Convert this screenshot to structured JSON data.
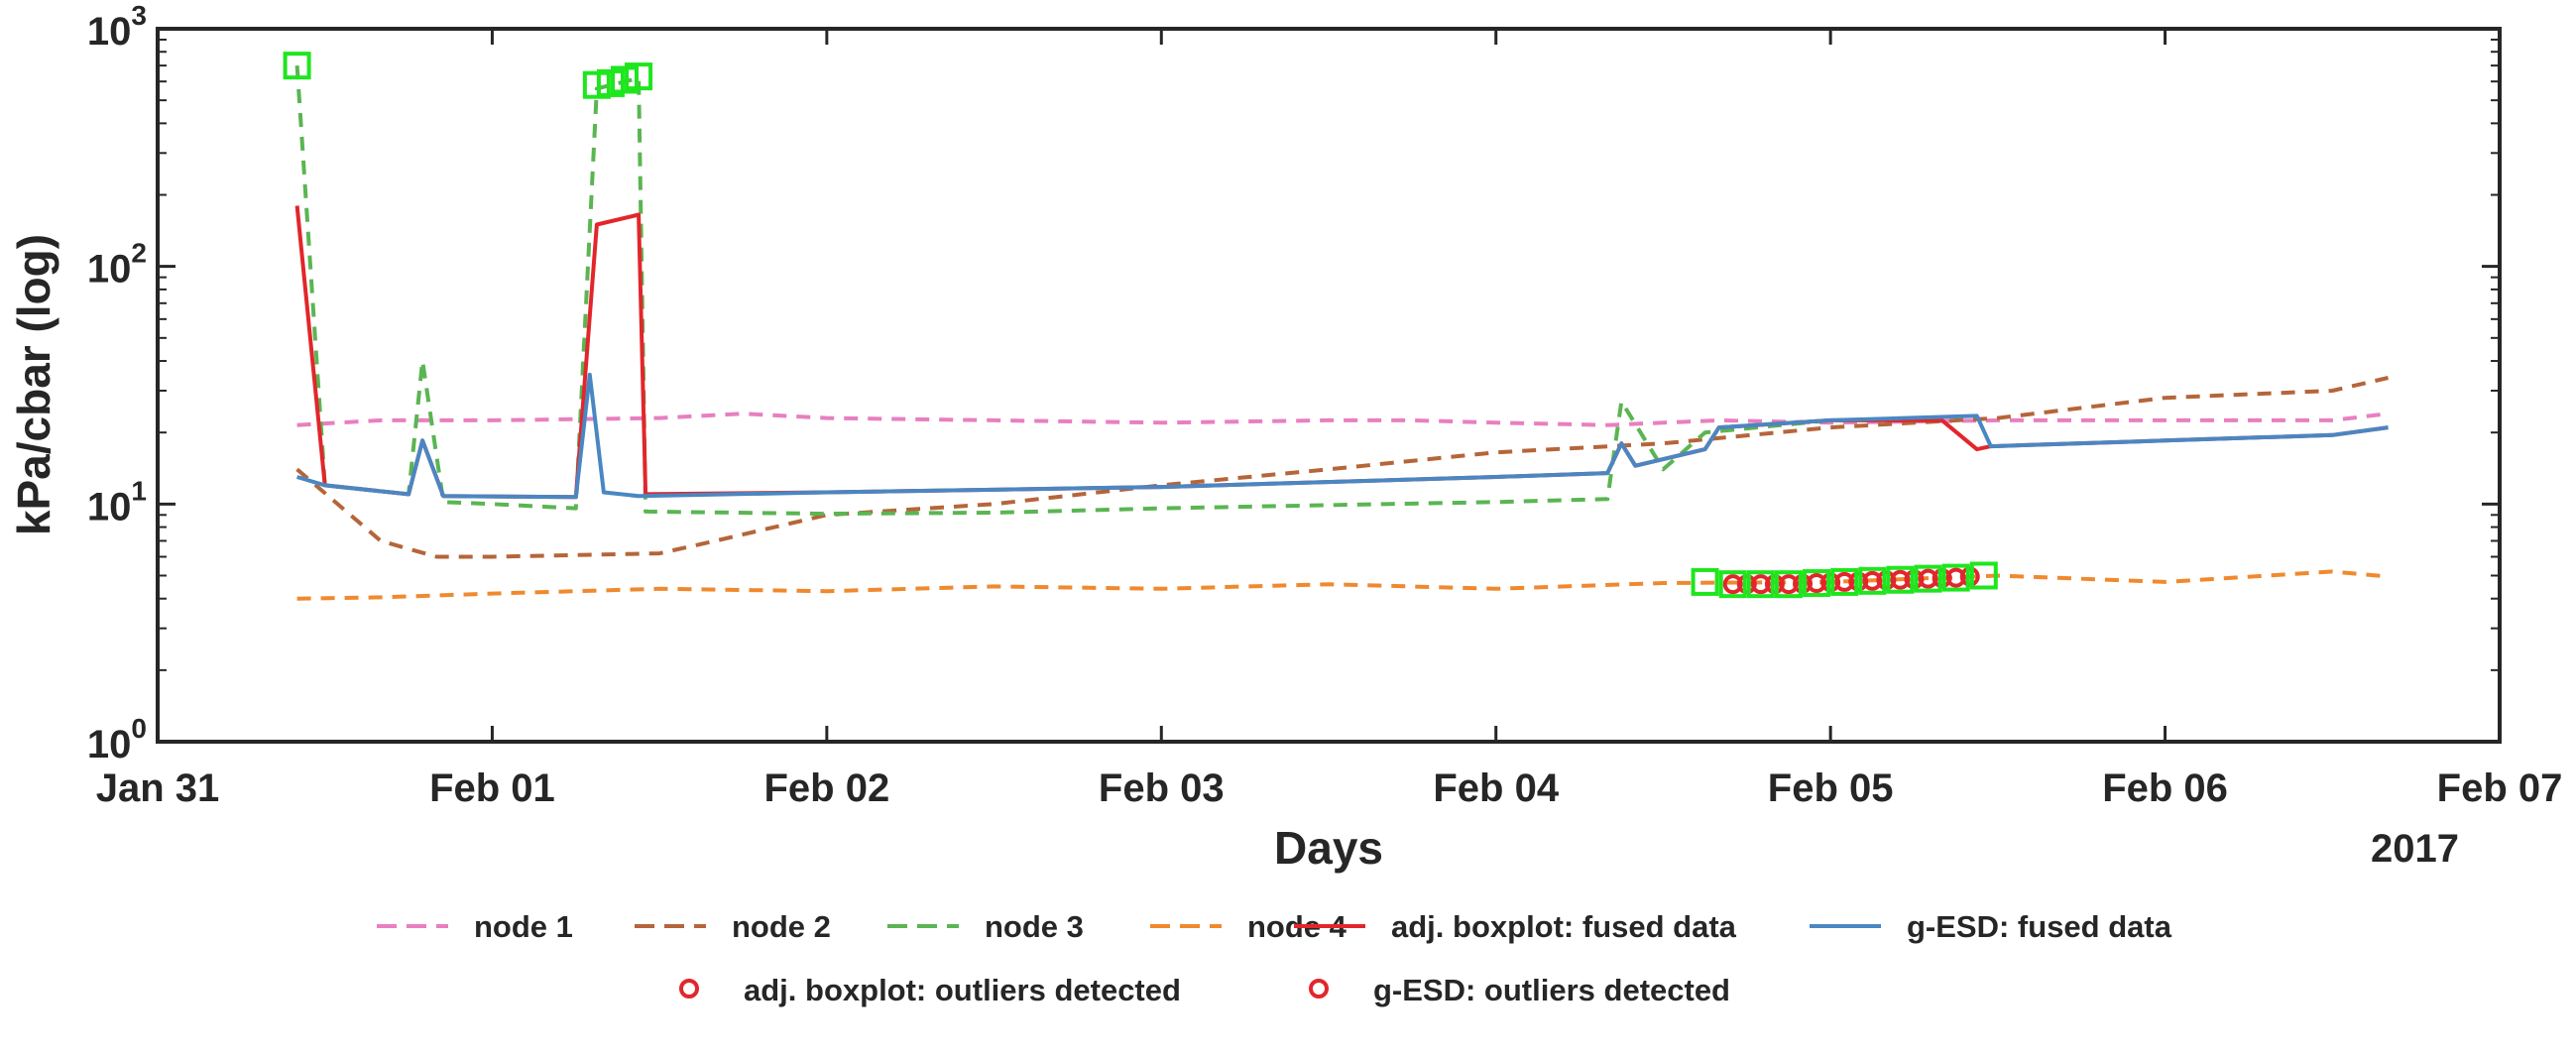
{
  "chart_data": {
    "type": "line",
    "xlabel": "Days",
    "ylabel": "kPa/cbar (log)",
    "year_label": "2017",
    "y_scale": "log",
    "ylim": [
      1,
      1000
    ],
    "xlim": [
      "2017-01-31",
      "2017-02-07"
    ],
    "grid": false,
    "legend_position": "bottom",
    "x_ticks": [
      {
        "date": "2017-01-31",
        "label": "Jan 31"
      },
      {
        "date": "2017-02-01",
        "label": "Feb 01"
      },
      {
        "date": "2017-02-02",
        "label": "Feb 02"
      },
      {
        "date": "2017-02-03",
        "label": "Feb 03"
      },
      {
        "date": "2017-02-04",
        "label": "Feb 04"
      },
      {
        "date": "2017-02-05",
        "label": "Feb 05"
      },
      {
        "date": "2017-02-06",
        "label": "Feb 06"
      },
      {
        "date": "2017-02-07",
        "label": "Feb 07"
      }
    ],
    "y_ticks": [
      {
        "value": 1,
        "base": "10",
        "exp": "0"
      },
      {
        "value": 10,
        "base": "10",
        "exp": "1"
      },
      {
        "value": 100,
        "base": "10",
        "exp": "2"
      },
      {
        "value": 1000,
        "base": "10",
        "exp": "3"
      }
    ],
    "series": [
      {
        "name": "node 1",
        "color": "#e87fc0",
        "style": "dashed",
        "points": [
          [
            "2017-01-31T10:00",
            21.5
          ],
          [
            "2017-01-31T16:00",
            22.5
          ],
          [
            "2017-02-01T00:00",
            22.5
          ],
          [
            "2017-02-01T12:00",
            23
          ],
          [
            "2017-02-01T18:00",
            24
          ],
          [
            "2017-02-02T00:00",
            23
          ],
          [
            "2017-02-02T12:00",
            22.5
          ],
          [
            "2017-02-03T00:00",
            22
          ],
          [
            "2017-02-03T12:00",
            22.5
          ],
          [
            "2017-02-03T18:00",
            22.5
          ],
          [
            "2017-02-04T00:00",
            22
          ],
          [
            "2017-02-04T08:00",
            21.5
          ],
          [
            "2017-02-04T16:00",
            22.5
          ],
          [
            "2017-02-05T00:00",
            22
          ],
          [
            "2017-02-05T12:00",
            22.5
          ],
          [
            "2017-02-06T00:00",
            22.5
          ],
          [
            "2017-02-06T12:00",
            22.5
          ],
          [
            "2017-02-06T16:00",
            24
          ]
        ]
      },
      {
        "name": "node 2",
        "color": "#b5653a",
        "style": "dashed",
        "points": [
          [
            "2017-01-31T10:00",
            14
          ],
          [
            "2017-01-31T16:00",
            7
          ],
          [
            "2017-01-31T20:00",
            6
          ],
          [
            "2017-02-01T00:00",
            6
          ],
          [
            "2017-02-01T12:00",
            6.2
          ],
          [
            "2017-02-01T16:00",
            7
          ],
          [
            "2017-02-02T00:00",
            9
          ],
          [
            "2017-02-02T12:00",
            10
          ],
          [
            "2017-02-03T00:00",
            12
          ],
          [
            "2017-02-03T12:00",
            14
          ],
          [
            "2017-02-04T00:00",
            16.5
          ],
          [
            "2017-02-04T12:00",
            18
          ],
          [
            "2017-02-05T00:00",
            21
          ],
          [
            "2017-02-05T12:00",
            23
          ],
          [
            "2017-02-06T00:00",
            28
          ],
          [
            "2017-02-06T12:00",
            30
          ],
          [
            "2017-02-06T16:00",
            34
          ]
        ]
      },
      {
        "name": "node 3",
        "color": "#5ab552",
        "style": "dashed",
        "points": [
          [
            "2017-01-31T10:00",
            700
          ],
          [
            "2017-01-31T12:00",
            12
          ],
          [
            "2017-01-31T18:00",
            11
          ],
          [
            "2017-01-31T19:00",
            40
          ],
          [
            "2017-01-31T20:30",
            10.2
          ],
          [
            "2017-02-01T00:00",
            10
          ],
          [
            "2017-02-01T06:00",
            9.6
          ],
          [
            "2017-02-01T07:30",
            560
          ],
          [
            "2017-02-01T10:30",
            620
          ],
          [
            "2017-02-01T11:00",
            9.3
          ],
          [
            "2017-02-02T00:00",
            9.1
          ],
          [
            "2017-02-02T12:00",
            9.2
          ],
          [
            "2017-02-03T00:00",
            9.6
          ],
          [
            "2017-02-03T12:00",
            9.9
          ],
          [
            "2017-02-04T00:00",
            10.2
          ],
          [
            "2017-02-04T08:00",
            10.5
          ],
          [
            "2017-02-04T09:00",
            27
          ],
          [
            "2017-02-04T12:00",
            14
          ],
          [
            "2017-02-04T15:00",
            20
          ],
          [
            "2017-02-05T00:00",
            22.5
          ],
          [
            "2017-02-05T08:00",
            22.5
          ]
        ]
      },
      {
        "name": "node 4",
        "color": "#f0892e",
        "style": "dashed",
        "points": [
          [
            "2017-01-31T10:00",
            4
          ],
          [
            "2017-01-31T16:00",
            4.05
          ],
          [
            "2017-02-01T00:00",
            4.2
          ],
          [
            "2017-02-01T12:00",
            4.4
          ],
          [
            "2017-02-02T00:00",
            4.3
          ],
          [
            "2017-02-02T12:00",
            4.5
          ],
          [
            "2017-02-03T00:00",
            4.4
          ],
          [
            "2017-02-03T12:00",
            4.6
          ],
          [
            "2017-02-04T00:00",
            4.4
          ],
          [
            "2017-02-04T12:00",
            4.65
          ],
          [
            "2017-02-05T00:00",
            4.7
          ],
          [
            "2017-02-05T12:00",
            5.0
          ],
          [
            "2017-02-06T00:00",
            4.7
          ],
          [
            "2017-02-06T12:00",
            5.2
          ],
          [
            "2017-02-06T16:00",
            4.95
          ]
        ]
      },
      {
        "name": "adj. boxplot: fused data",
        "color": "#e2262b",
        "style": "solid",
        "points": [
          [
            "2017-01-31T10:00",
            180
          ],
          [
            "2017-01-31T12:00",
            12
          ],
          [
            "2017-01-31T18:00",
            11
          ],
          [
            "2017-01-31T19:00",
            18.5
          ],
          [
            "2017-01-31T20:30",
            10.8
          ],
          [
            "2017-02-01T06:00",
            10.7
          ],
          [
            "2017-02-01T07:30",
            150
          ],
          [
            "2017-02-01T10:30",
            165
          ],
          [
            "2017-02-01T11:00",
            11
          ],
          [
            "2017-02-02T00:00",
            11.2
          ],
          [
            "2017-02-03T00:00",
            11.8
          ],
          [
            "2017-02-04T00:00",
            13
          ],
          [
            "2017-02-04T08:00",
            13.5
          ],
          [
            "2017-02-04T09:00",
            18
          ],
          [
            "2017-02-04T10:00",
            14.5
          ],
          [
            "2017-02-04T15:00",
            17
          ],
          [
            "2017-02-04T16:00",
            21
          ],
          [
            "2017-02-05T00:00",
            22.5
          ],
          [
            "2017-02-05T08:00",
            22.5
          ],
          [
            "2017-02-05T10:30",
            17
          ],
          [
            "2017-02-05T11:30",
            17.5
          ],
          [
            "2017-02-06T00:00",
            18.5
          ],
          [
            "2017-02-06T12:00",
            19.5
          ],
          [
            "2017-02-06T16:00",
            21
          ]
        ]
      },
      {
        "name": "g-ESD: fused data",
        "color": "#4a87c2",
        "style": "solid",
        "points": [
          [
            "2017-01-31T10:00",
            13
          ],
          [
            "2017-01-31T12:00",
            12
          ],
          [
            "2017-01-31T18:00",
            11
          ],
          [
            "2017-01-31T19:00",
            18.5
          ],
          [
            "2017-01-31T20:30",
            10.8
          ],
          [
            "2017-02-01T06:00",
            10.7
          ],
          [
            "2017-02-01T07:00",
            35
          ],
          [
            "2017-02-01T08:00",
            11.2
          ],
          [
            "2017-02-01T10:30",
            10.8
          ],
          [
            "2017-02-02T00:00",
            11.2
          ],
          [
            "2017-02-03T00:00",
            11.8
          ],
          [
            "2017-02-04T00:00",
            13
          ],
          [
            "2017-02-04T08:00",
            13.5
          ],
          [
            "2017-02-04T09:00",
            18
          ],
          [
            "2017-02-04T10:00",
            14.5
          ],
          [
            "2017-02-04T15:00",
            17
          ],
          [
            "2017-02-04T16:00",
            21
          ],
          [
            "2017-02-05T00:00",
            22.5
          ],
          [
            "2017-02-05T10:30",
            23.5
          ],
          [
            "2017-02-05T11:30",
            17.5
          ],
          [
            "2017-02-06T00:00",
            18.5
          ],
          [
            "2017-02-06T12:00",
            19.5
          ],
          [
            "2017-02-06T16:00",
            21
          ]
        ]
      }
    ],
    "outlier_markers": {
      "color": "#1ee61e",
      "points": [
        [
          "2017-01-31T10:00",
          700
        ],
        [
          "2017-02-01T07:30",
          580
        ],
        [
          "2017-02-01T08:30",
          590
        ],
        [
          "2017-02-01T09:30",
          610
        ],
        [
          "2017-02-01T10:30",
          630
        ],
        [
          "2017-02-04T15:00",
          4.7
        ],
        [
          "2017-02-04T17:00",
          4.6
        ],
        [
          "2017-02-04T19:00",
          4.6
        ],
        [
          "2017-02-04T21:00",
          4.6
        ],
        [
          "2017-02-04T23:00",
          4.65
        ],
        [
          "2017-02-05T01:00",
          4.7
        ],
        [
          "2017-02-05T03:00",
          4.75
        ],
        [
          "2017-02-05T05:00",
          4.8
        ],
        [
          "2017-02-05T07:00",
          4.85
        ],
        [
          "2017-02-05T09:00",
          4.9
        ],
        [
          "2017-02-05T11:00",
          5.0
        ]
      ]
    },
    "outlier_circles": {
      "color": "#e2262b",
      "points": [
        [
          "2017-02-04T17:00",
          4.6
        ],
        [
          "2017-02-04T18:00",
          4.6
        ],
        [
          "2017-02-04T19:00",
          4.6
        ],
        [
          "2017-02-04T20:00",
          4.6
        ],
        [
          "2017-02-04T21:00",
          4.6
        ],
        [
          "2017-02-04T22:00",
          4.62
        ],
        [
          "2017-02-04T23:00",
          4.65
        ],
        [
          "2017-02-05T00:00",
          4.68
        ],
        [
          "2017-02-05T01:00",
          4.7
        ],
        [
          "2017-02-05T02:00",
          4.72
        ],
        [
          "2017-02-05T03:00",
          4.75
        ],
        [
          "2017-02-05T04:00",
          4.78
        ],
        [
          "2017-02-05T05:00",
          4.8
        ],
        [
          "2017-02-05T06:00",
          4.82
        ],
        [
          "2017-02-05T07:00",
          4.85
        ],
        [
          "2017-02-05T08:00",
          4.88
        ],
        [
          "2017-02-05T09:00",
          4.9
        ],
        [
          "2017-02-05T10:00",
          4.95
        ]
      ]
    },
    "legend": [
      {
        "label": "node 1",
        "type": "line",
        "color": "#e87fc0",
        "dashed": true
      },
      {
        "label": "node 2",
        "type": "line",
        "color": "#b5653a",
        "dashed": true
      },
      {
        "label": "node 3",
        "type": "line",
        "color": "#5ab552",
        "dashed": true
      },
      {
        "label": "node 4",
        "type": "line",
        "color": "#f0892e",
        "dashed": true
      },
      {
        "label": "adj. boxplot: fused data",
        "type": "line",
        "color": "#e2262b",
        "dashed": false
      },
      {
        "label": "g-ESD: fused data",
        "type": "line",
        "color": "#4a87c2",
        "dashed": false
      },
      {
        "label": "adj. boxplot: outliers detected",
        "type": "marker",
        "color": "#e2262b"
      },
      {
        "label": "g-ESD: outliers detected",
        "type": "marker",
        "color": "#e2262b"
      }
    ]
  }
}
